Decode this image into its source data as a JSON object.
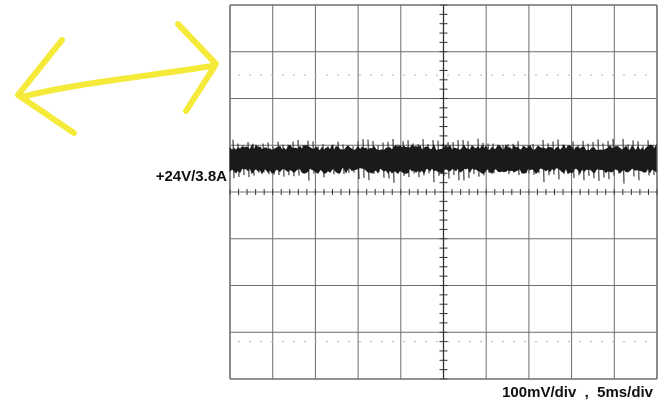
{
  "chart_data": {
    "type": "line",
    "title": "",
    "xlabel": "",
    "ylabel": "",
    "grid": true,
    "divisions": {
      "horizontal": 10,
      "vertical": 8
    },
    "channel_label": "+24V/3.8A",
    "scale_label": "100mV/div  ,  5ms/div",
    "series": [
      {
        "trace_level_div": 4.7,
        "ripple_peak_to_peak_div": 0.55,
        "description_units": "divisions from bottom of graticule"
      }
    ]
  },
  "annotation": {
    "type": "double-headed-arrow",
    "color": "#f5ea3a"
  },
  "colors": {
    "grid": "#6e6e6e",
    "trace": "#1a1a1a",
    "background": "#ffffff"
  }
}
